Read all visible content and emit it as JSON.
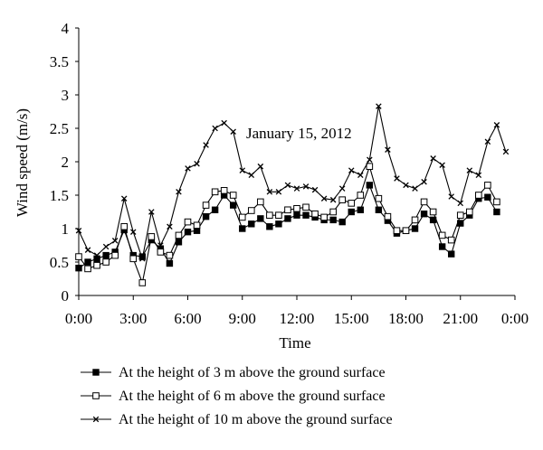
{
  "chart_data": {
    "type": "line",
    "annotation": "January 15, 2012",
    "xlabel": "Time",
    "ylabel": "Wind speed (m/s)",
    "ylim": [
      0,
      4
    ],
    "yticks": [
      "0",
      "0.5",
      "1",
      "1.5",
      "2",
      "2.5",
      "3",
      "3.5",
      "4"
    ],
    "xlim": [
      0,
      24
    ],
    "xticks": [
      "0:00",
      "3:00",
      "6:00",
      "9:00",
      "12:00",
      "15:00",
      "18:00",
      "21:00",
      "0:00"
    ],
    "grid": false,
    "legend_position": "bottom",
    "x": [
      0,
      0.5,
      1,
      1.5,
      2,
      2.5,
      3,
      3.5,
      4,
      4.5,
      5,
      5.5,
      6,
      6.5,
      7,
      7.5,
      8,
      8.5,
      9,
      9.5,
      10,
      10.5,
      11,
      11.5,
      12,
      12.5,
      13,
      13.5,
      14,
      14.5,
      15,
      15.5,
      16,
      16.5,
      17,
      17.5,
      18,
      18.5,
      19,
      19.5,
      20,
      20.5,
      21,
      21.5,
      22,
      22.5,
      23,
      23.5
    ],
    "series": [
      {
        "name": "At the height of 3 m above the ground surface",
        "marker": "filled-square",
        "color": "#000000",
        "values": [
          0.41,
          0.5,
          0.55,
          0.6,
          0.65,
          0.98,
          0.6,
          0.58,
          0.83,
          0.7,
          0.48,
          0.8,
          0.95,
          0.97,
          1.18,
          1.28,
          1.5,
          1.35,
          1.0,
          1.07,
          1.15,
          1.03,
          1.07,
          1.15,
          1.2,
          1.2,
          1.17,
          1.13,
          1.13,
          1.1,
          1.25,
          1.28,
          1.65,
          1.28,
          1.12,
          0.93,
          0.97,
          1.0,
          1.22,
          1.13,
          0.73,
          0.62,
          1.08,
          1.2,
          1.45,
          1.47,
          1.25,
          null
        ]
      },
      {
        "name": "At the height of 6 m above the ground surface",
        "marker": "open-square",
        "color": "#000000",
        "values": [
          0.58,
          0.4,
          0.45,
          0.5,
          0.6,
          1.03,
          0.55,
          0.19,
          0.88,
          0.65,
          0.6,
          0.9,
          1.1,
          1.05,
          1.35,
          1.55,
          1.57,
          1.5,
          1.17,
          1.27,
          1.4,
          1.2,
          1.2,
          1.28,
          1.3,
          1.32,
          1.22,
          1.17,
          1.25,
          1.43,
          1.38,
          1.5,
          1.93,
          1.45,
          1.18,
          0.97,
          0.97,
          1.13,
          1.4,
          1.25,
          0.9,
          0.83,
          1.2,
          1.25,
          1.5,
          1.65,
          1.4,
          null
        ]
      },
      {
        "name": "At the height of 10 m above the ground surface",
        "marker": "cross",
        "color": "#000000",
        "values": [
          0.97,
          0.68,
          0.6,
          0.73,
          0.82,
          1.45,
          0.95,
          0.55,
          1.25,
          0.75,
          1.03,
          1.55,
          1.9,
          1.97,
          2.25,
          2.5,
          2.58,
          2.45,
          1.87,
          1.8,
          1.93,
          1.55,
          1.55,
          1.65,
          1.6,
          1.63,
          1.58,
          1.45,
          1.43,
          1.6,
          1.87,
          1.8,
          2.03,
          2.83,
          2.18,
          1.75,
          1.65,
          1.6,
          1.7,
          2.05,
          1.95,
          1.48,
          1.38,
          1.87,
          1.8,
          2.3,
          2.55,
          2.15
        ]
      }
    ]
  }
}
